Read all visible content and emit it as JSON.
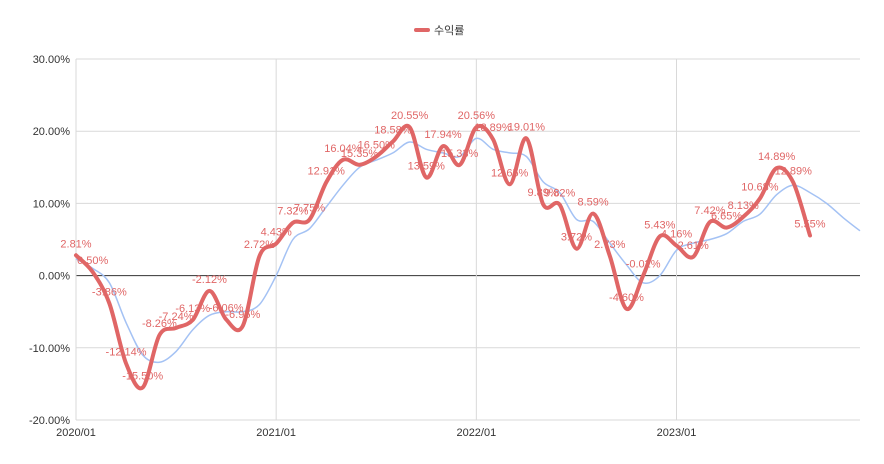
{
  "chart_data": {
    "type": "line",
    "legend": {
      "position": "top",
      "labels": [
        "수익률"
      ]
    },
    "y_axis": {
      "min": -20,
      "max": 30,
      "step": 10,
      "tick_labels": [
        "-20.00%",
        "-10.00%",
        "0.00%",
        "10.00%",
        "20.00%",
        "30.00%"
      ]
    },
    "x_axis": {
      "min": 0,
      "max": 47,
      "tick_positions": [
        0,
        12,
        24,
        36
      ],
      "tick_labels": [
        "2020/01",
        "2021/01",
        "2022/01",
        "2023/01"
      ]
    },
    "grid": true,
    "colors": {
      "main": "#e06666",
      "secondary": "#a4c2f4",
      "grid": "#d9d9d9",
      "zero": "#333333"
    },
    "series": [
      {
        "name": "수익률",
        "x": [
          0,
          1,
          2,
          3,
          4,
          5,
          6,
          7,
          8,
          9,
          10,
          11,
          12,
          13,
          14,
          15,
          16,
          17,
          18,
          19,
          20,
          21,
          22,
          23,
          24,
          25,
          26,
          27,
          28,
          29,
          30,
          31,
          32,
          33,
          34,
          35,
          36,
          37,
          38,
          39,
          40,
          41,
          42,
          43,
          44
        ],
        "y": [
          2.81,
          0.5,
          -3.86,
          -12.14,
          -15.5,
          -8.26,
          -7.24,
          -6.13,
          -2.12,
          -6.06,
          -6.96,
          2.72,
          4.43,
          7.32,
          7.75,
          12.91,
          16.04,
          15.35,
          16.5,
          18.58,
          20.55,
          13.59,
          17.94,
          15.33,
          20.56,
          18.89,
          12.65,
          19.01,
          9.89,
          9.82,
          3.72,
          8.59,
          2.73,
          -4.6,
          -0.02,
          5.43,
          4.16,
          2.61,
          7.42,
          6.65,
          8.13,
          10.68,
          14.89,
          12.89,
          5.55
        ],
        "labels": [
          "2.81%",
          "0.50%",
          "-3.86%",
          "-12.14%",
          "-15.50%",
          "-8.26%",
          "-7.24%",
          "-6.13%",
          "-2.12%",
          "-6.06%",
          "-6.96%",
          "2.72%",
          "4.43%",
          "7.32%",
          "7.75%",
          "12.91%",
          "16.04%",
          "15.35%",
          "16.50%",
          "18.58%",
          "20.55%",
          "13.59%",
          "17.94%",
          "15.33%",
          "20.56%",
          "18.89%",
          "12.65%",
          "19.01%",
          "9.89%",
          "9.82%",
          "3.72%",
          "8.59%",
          "2.73%",
          "-4.60%",
          "-0.02%",
          "5.43%",
          "4.16%",
          "2.61%",
          "7.42%",
          "6.65%",
          "8.13%",
          "10.68%",
          "14.89%",
          "12.89%",
          "5.55%"
        ]
      },
      {
        "x": [
          0,
          1,
          2,
          3,
          4,
          5,
          6,
          7,
          8,
          9,
          10,
          11,
          12,
          13,
          14,
          15,
          16,
          17,
          18,
          19,
          20,
          21,
          22,
          23,
          24,
          25,
          26,
          27,
          28,
          29,
          30,
          31,
          32,
          33,
          34,
          35,
          36,
          37,
          38,
          39,
          40,
          41,
          42,
          43,
          44,
          45,
          46,
          47
        ],
        "y": [
          2.3,
          1.0,
          -1.0,
          -6.5,
          -11.0,
          -12.0,
          -10.5,
          -7.5,
          -5.5,
          -5.0,
          -5.0,
          -4.0,
          0.0,
          5.0,
          6.5,
          9.5,
          12.5,
          15.0,
          16.0,
          17.0,
          18.5,
          17.5,
          17.0,
          16.5,
          19.0,
          17.5,
          17.0,
          16.5,
          13.0,
          11.5,
          7.8,
          7.5,
          4.5,
          1.5,
          -1.0,
          0.0,
          3.5,
          4.5,
          5.0,
          5.8,
          7.5,
          8.5,
          11.2,
          12.5,
          11.5,
          10.0,
          8.0,
          6.2
        ]
      }
    ]
  }
}
